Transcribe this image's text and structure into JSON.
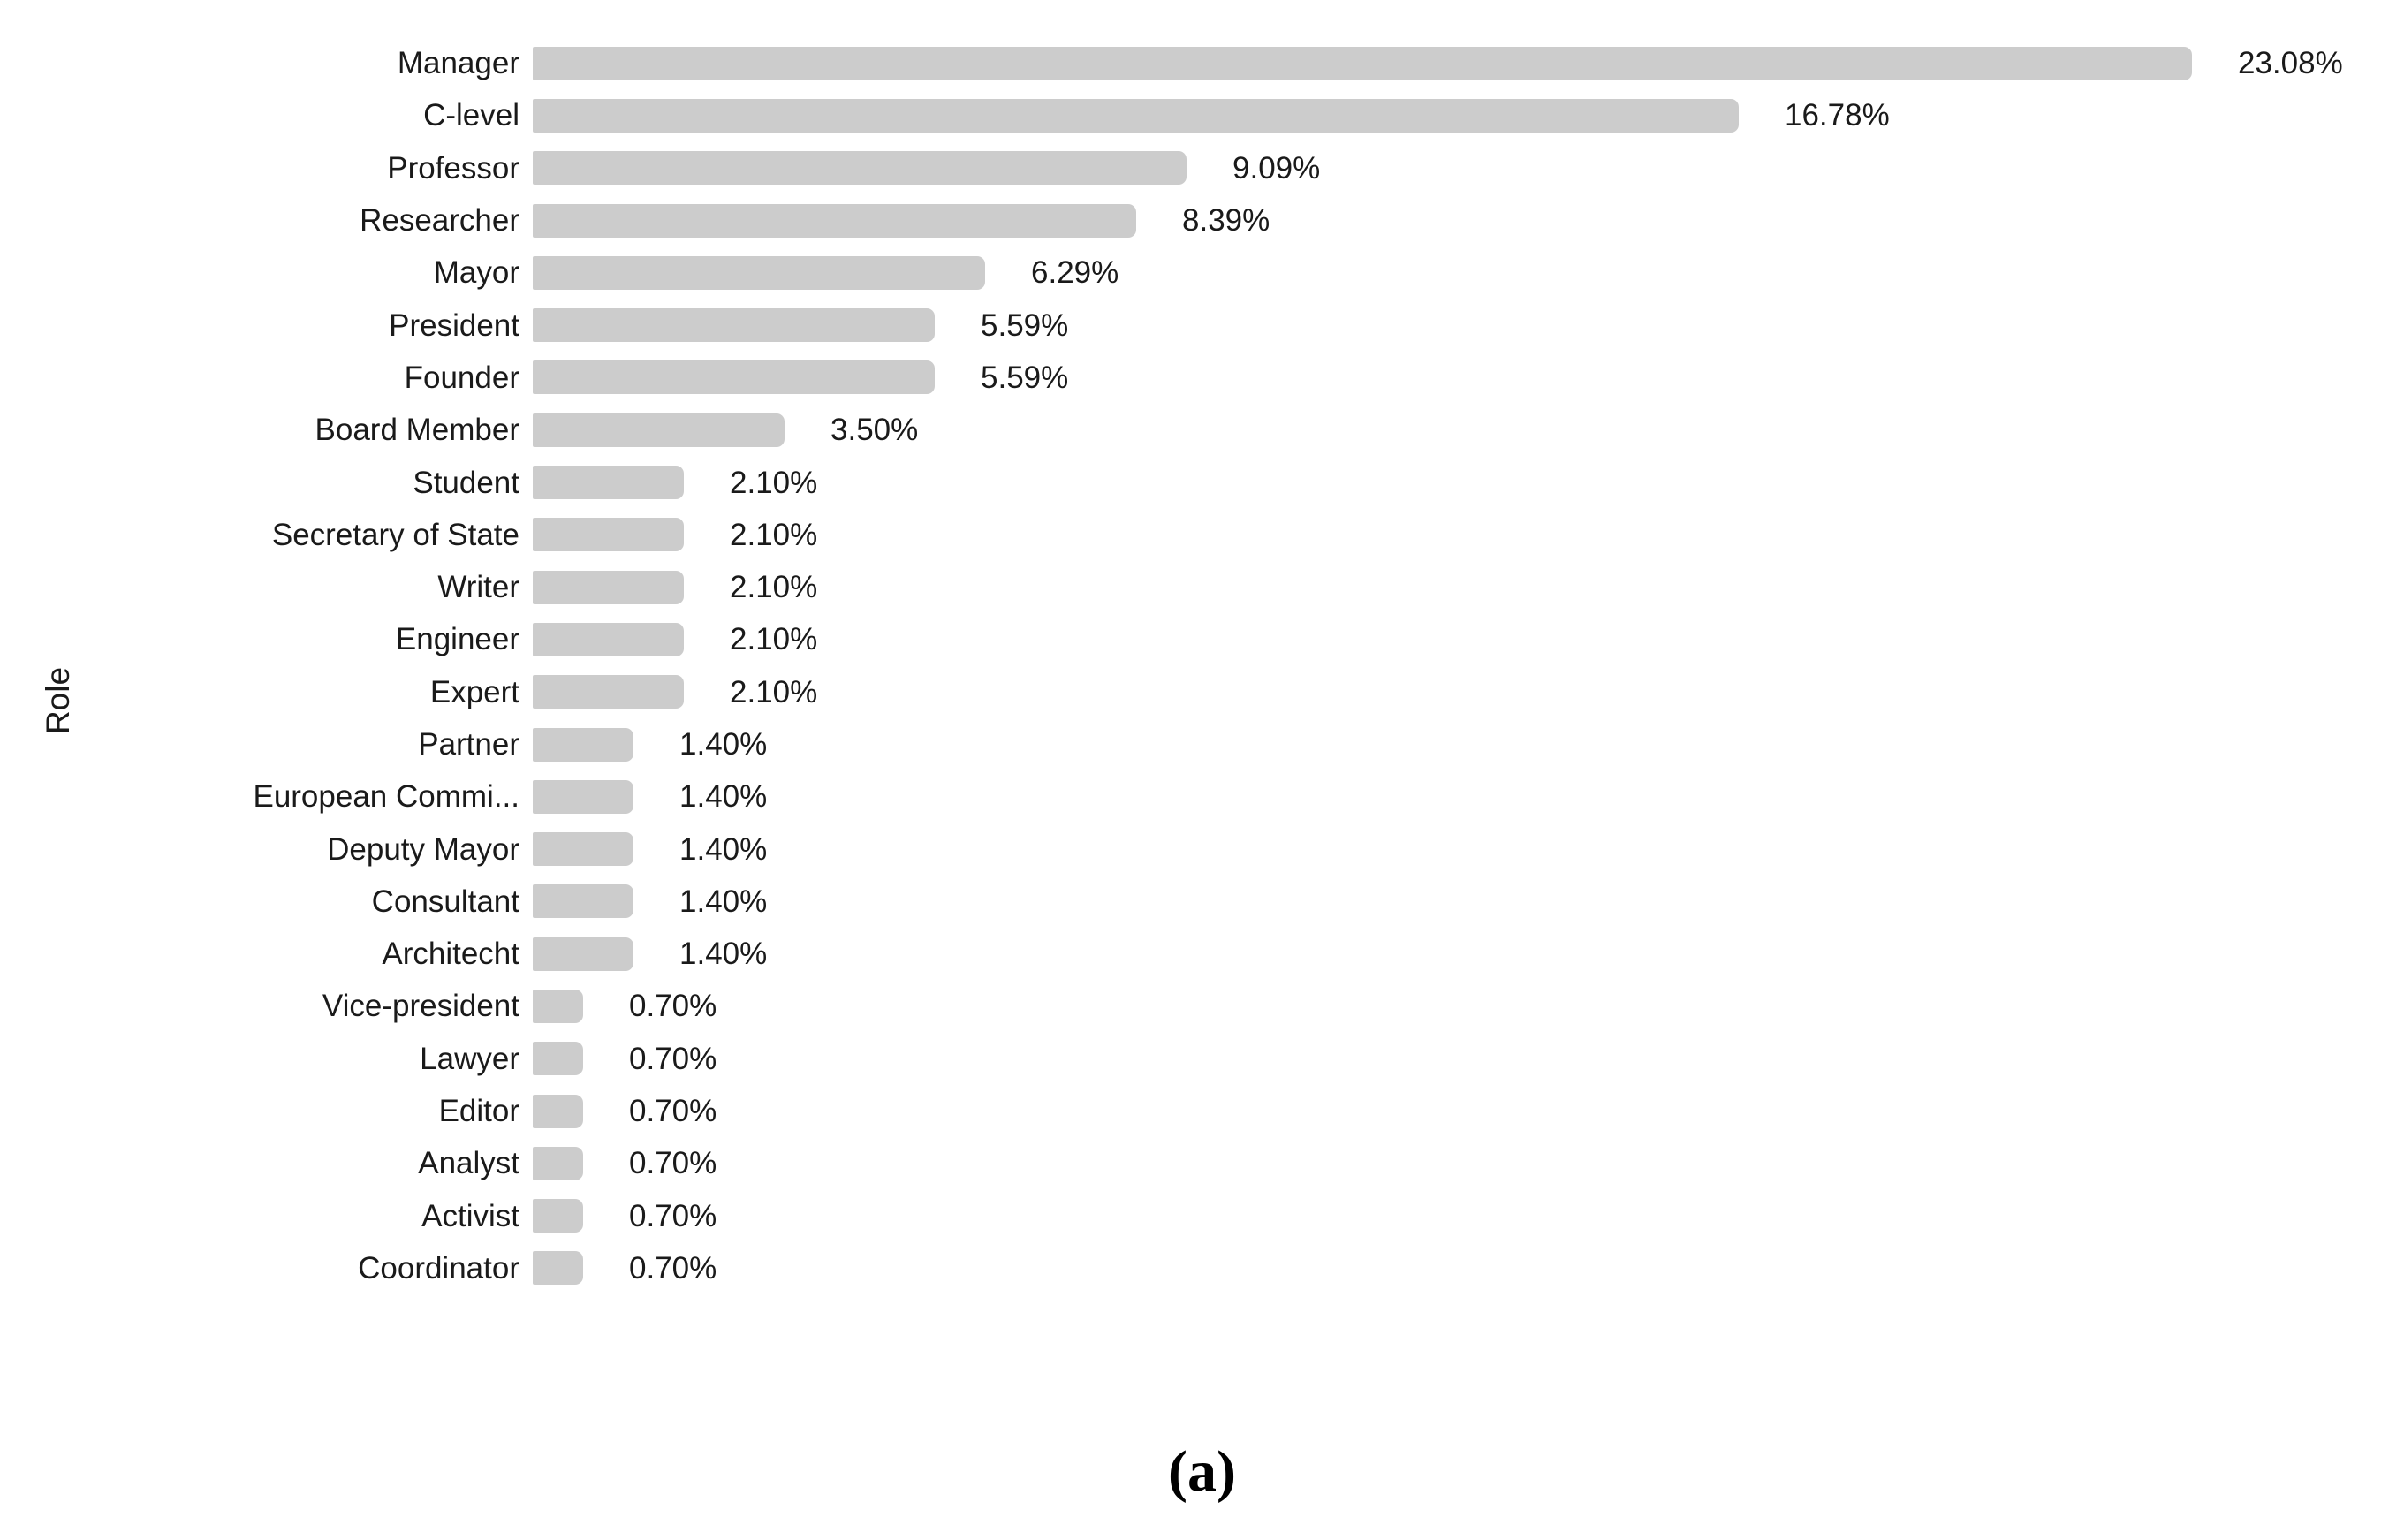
{
  "chart_data": {
    "type": "bar",
    "orientation": "horizontal",
    "title": "",
    "xlabel": "",
    "ylabel": "Role",
    "xlim": [
      0,
      23.08
    ],
    "grid": false,
    "legend": false,
    "bar_color": "#cccccc",
    "text_color": "#1a1a1a",
    "categories": [
      "Manager",
      "C-level",
      "Professor",
      "Researcher",
      "Mayor",
      "President",
      "Founder",
      "Board Member",
      "Student",
      "Secretary of State",
      "Writer",
      "Engineer",
      "Expert",
      "Partner",
      "European Commi...",
      "Deputy Mayor",
      "Consultant",
      "Architecht",
      "Vice-president",
      "Lawyer",
      "Editor",
      "Analyst",
      "Activist",
      "Coordinator"
    ],
    "values": [
      23.08,
      16.78,
      9.09,
      8.39,
      6.29,
      5.59,
      5.59,
      3.5,
      2.1,
      2.1,
      2.1,
      2.1,
      2.1,
      1.4,
      1.4,
      1.4,
      1.4,
      1.4,
      0.7,
      0.7,
      0.7,
      0.7,
      0.7,
      0.7
    ],
    "value_labels": [
      "23.08%",
      "16.78%",
      "9.09%",
      "8.39%",
      "6.29%",
      "5.59%",
      "5.59%",
      "3.50%",
      "2.10%",
      "2.10%",
      "2.10%",
      "2.10%",
      "2.10%",
      "1.40%",
      "1.40%",
      "1.40%",
      "1.40%",
      "1.40%",
      "0.70%",
      "0.70%",
      "0.70%",
      "0.70%",
      "0.70%",
      "0.70%"
    ]
  },
  "caption": "(a)"
}
